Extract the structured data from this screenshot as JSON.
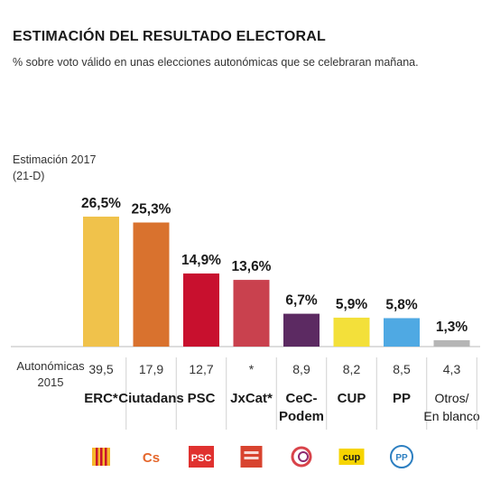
{
  "title": "ESTIMACIÓN DEL RESULTADO ELECTORAL",
  "subtitle": "% sobre voto válido en unas elecciones autonómicas que se celebraran mañana.",
  "estimate_label_line1": "Estimación 2017",
  "estimate_label_line2": "(21-D)",
  "row_label_line1": "Autonómicas",
  "row_label_line2": "2015",
  "chart_data": {
    "type": "bar",
    "categories": [
      "ERC*",
      "Ciutadans",
      "PSC",
      "JxCat*",
      "CeC-Podem",
      "CUP",
      "PP",
      "Otros/En blanco"
    ],
    "category_lines": [
      [
        "ERC*"
      ],
      [
        "Ciutadans"
      ],
      [
        "PSC"
      ],
      [
        "JxCat*"
      ],
      [
        "CeC-",
        "Podem"
      ],
      [
        "CUP"
      ],
      [
        "PP"
      ],
      [
        "Otros/",
        "En blanco"
      ]
    ],
    "values": [
      26.5,
      25.3,
      14.9,
      13.6,
      6.7,
      5.9,
      5.8,
      1.3
    ],
    "value_labels": [
      "26,5%",
      "25,3%",
      "14,9%",
      "13,6%",
      "6,7%",
      "5,9%",
      "5,8%",
      "1,3%"
    ],
    "previous_2015": [
      "39,5",
      "17,9",
      "12,7",
      "*",
      "8,9",
      "8,2",
      "8,5",
      "4,3"
    ],
    "colors": [
      "#f0c24b",
      "#d9722e",
      "#c8102e",
      "#c9414e",
      "#5c2a62",
      "#f3e03a",
      "#4fa9e3",
      "#b5b5b5"
    ],
    "logo_icons": [
      "erc-logo-icon",
      "cs-logo-icon",
      "psc-logo-icon",
      "jxcat-logo-icon",
      "cec-podem-logo-icon",
      "cup-logo-icon",
      "pp-logo-icon",
      ""
    ],
    "logo_texts": [
      "",
      "Cs",
      "PSC",
      "",
      "",
      "cup",
      "PP",
      ""
    ],
    "ylim": [
      0,
      30
    ]
  }
}
